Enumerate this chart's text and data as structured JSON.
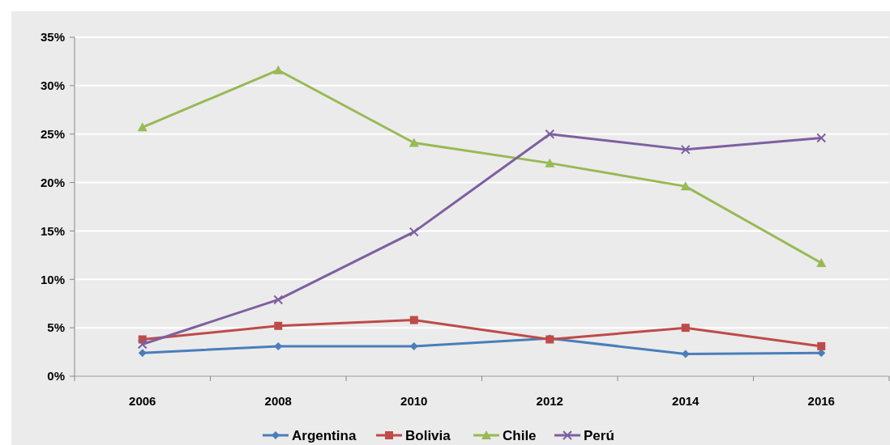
{
  "chart_data": {
    "type": "line",
    "categories": [
      "2006",
      "2008",
      "2010",
      "2012",
      "2014",
      "2016"
    ],
    "series": [
      {
        "name": "Argentina",
        "color": "#4a7ebb",
        "marker": "diamond",
        "values": [
          2.4,
          3.1,
          3.1,
          3.9,
          2.3,
          2.4
        ]
      },
      {
        "name": "Bolivia",
        "color": "#be4b48",
        "marker": "square",
        "values": [
          3.8,
          5.2,
          5.8,
          3.8,
          5.0,
          3.1
        ]
      },
      {
        "name": "Chile",
        "color": "#98b954",
        "marker": "triangle",
        "values": [
          25.7,
          31.6,
          24.1,
          22.0,
          19.6,
          11.7
        ]
      },
      {
        "name": "Perú",
        "color": "#7d60a0",
        "marker": "cross",
        "values": [
          3.3,
          7.9,
          14.9,
          25.0,
          23.4,
          24.6
        ]
      }
    ],
    "ylim": [
      0,
      35
    ],
    "yticks": [
      {
        "value": 0,
        "label": "0%"
      },
      {
        "value": 5,
        "label": "5%"
      },
      {
        "value": 10,
        "label": "10%"
      },
      {
        "value": 15,
        "label": "15%"
      },
      {
        "value": 20,
        "label": "20%"
      },
      {
        "value": 25,
        "label": "25%"
      },
      {
        "value": 30,
        "label": "30%"
      },
      {
        "value": 35,
        "label": "35%"
      }
    ],
    "grid": "y",
    "legend": "bottom"
  }
}
